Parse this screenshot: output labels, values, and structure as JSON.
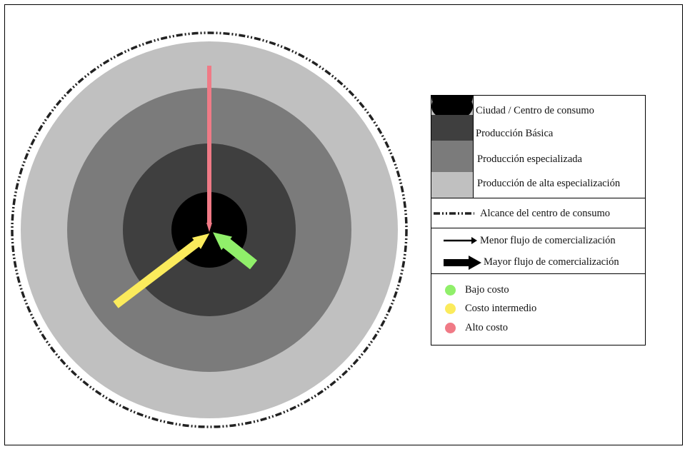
{
  "diagram": {
    "rings": [
      {
        "name": "city",
        "color": "#000000"
      },
      {
        "name": "basic",
        "color": "#3f3f3f"
      },
      {
        "name": "specialized",
        "color": "#7b7b7b"
      },
      {
        "name": "high",
        "color": "#c0c0c0"
      }
    ],
    "flows": [
      {
        "cost": "alto",
        "color": "#f07a86",
        "width": "thin"
      },
      {
        "cost": "intermedio",
        "color": "#fbeb5c",
        "width": "thick"
      },
      {
        "cost": "bajo",
        "color": "#90ef6a",
        "width": "thick"
      }
    ]
  },
  "legend": {
    "zones": [
      {
        "label": "Ciudad / Centro de consumo",
        "color": "#000000"
      },
      {
        "label": "Producción Básica",
        "color": "#3f3f3f"
      },
      {
        "label": "Producción especializada",
        "color": "#7b7b7b"
      },
      {
        "label": "Producción de alta especialización",
        "color": "#c0c0c0"
      }
    ],
    "reach": "Alcance del centro de consumo",
    "flows": {
      "minor": "Menor flujo de comercialización",
      "major": "Mayor flujo de comercialización"
    },
    "costs": [
      {
        "label": "Bajo costo",
        "color": "#90ef6a"
      },
      {
        "label": "Costo intermedio",
        "color": "#fbeb5c"
      },
      {
        "label": "Alto costo",
        "color": "#f07a86"
      }
    ]
  }
}
